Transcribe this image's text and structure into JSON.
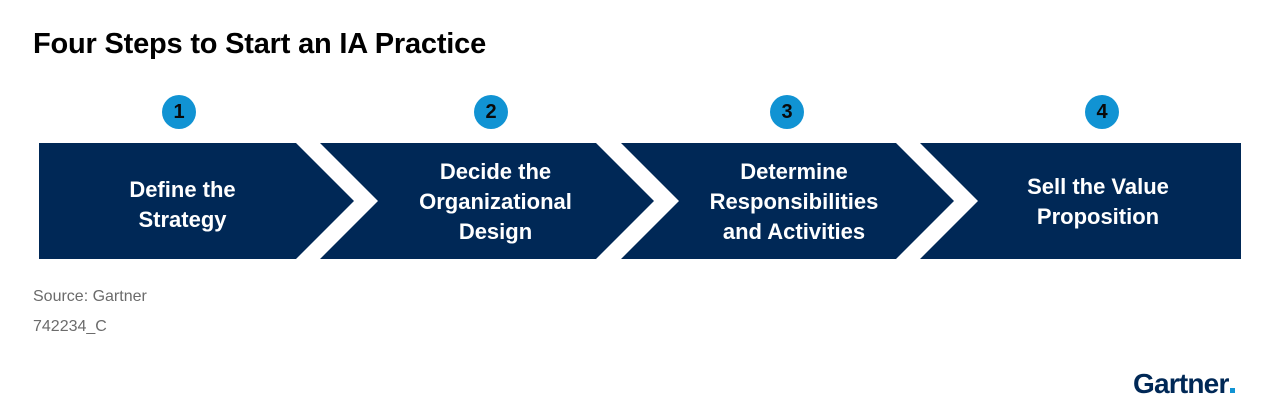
{
  "title": "Four Steps to Start an IA Practice",
  "colors": {
    "arrow_fill": "#002856",
    "badge_fill": "#1193d3",
    "arrow_text": "#ffffff"
  },
  "steps": [
    {
      "number": "1",
      "label": "Define the\nStrategy"
    },
    {
      "number": "2",
      "label": "Decide the\nOrganizational\nDesign"
    },
    {
      "number": "3",
      "label": "Determine\nResponsibilities\nand Activities"
    },
    {
      "number": "4",
      "label": "Sell the Value\nProposition"
    }
  ],
  "source": "Source: Gartner",
  "code": "742234_C",
  "logo": {
    "text": "Gartner",
    "mark": "gartner-logo"
  }
}
